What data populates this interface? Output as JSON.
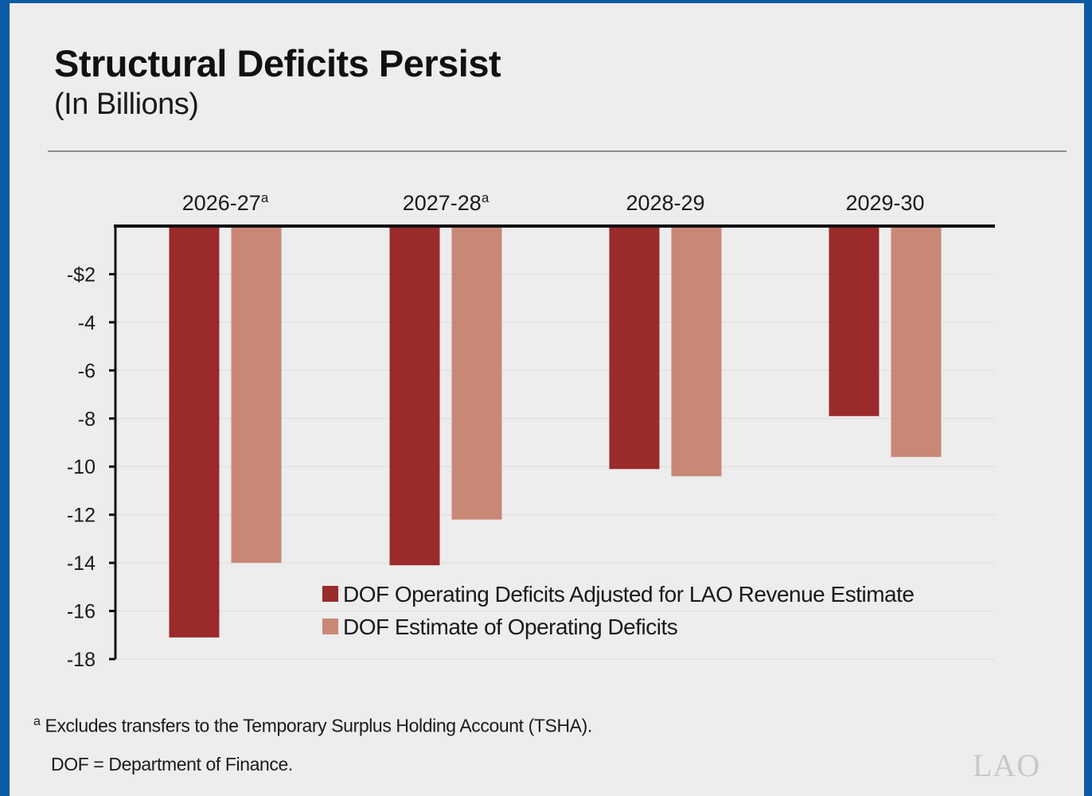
{
  "chart_data": {
    "type": "bar",
    "title": "Structural Deficits Persist",
    "subtitle": "(In Billions)",
    "categories": [
      "2026-27",
      "2027-28",
      "2028-29",
      "2029-30"
    ],
    "category_footnote_marks": [
      "a",
      "a",
      "",
      ""
    ],
    "series": [
      {
        "name": "DOF Operating Deficits Adjusted for LAO Revenue Estimate",
        "color": "#9b2a2a",
        "values": [
          -17.1,
          -14.1,
          -10.1,
          -7.9
        ]
      },
      {
        "name": "DOF Estimate of Operating Deficits",
        "color": "#c98876",
        "values": [
          -14.0,
          -12.2,
          -10.4,
          -9.6
        ]
      }
    ],
    "ylim": [
      -18,
      0
    ],
    "yticks": [
      -2,
      -4,
      -6,
      -8,
      -10,
      -12,
      -14,
      -16,
      -18
    ],
    "ytick_labels": [
      "-$2",
      "-4",
      "-6",
      "-8",
      "-10",
      "-12",
      "-14",
      "-16",
      "-18"
    ],
    "grid": true,
    "legend_position": "bottom-right inside plot",
    "xlabel": "",
    "ylabel": ""
  },
  "footnotes": {
    "mark": "a",
    "note_a": "Excludes transfers to the Temporary Surplus Holding Account (TSHA).",
    "note_dof": "DOF = Department of Finance."
  },
  "logo": "LAO"
}
